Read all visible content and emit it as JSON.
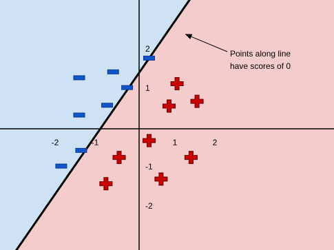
{
  "colors": {
    "negative_region": "#cfe2f3",
    "positive_region": "#f4cccc",
    "axis": "#000000",
    "boundary": "#000000",
    "minus_fill": "#1155cc",
    "minus_stroke": "#0b3a8c",
    "plus_fill": "#cc0000",
    "plus_stroke": "#660000"
  },
  "axes": {
    "x_ticks": [
      {
        "value": -2,
        "label": "-2"
      },
      {
        "value": -1,
        "label": "-1"
      },
      {
        "value": 1,
        "label": "1"
      },
      {
        "value": 2,
        "label": "2"
      }
    ],
    "y_ticks": [
      {
        "value": 2,
        "label": "2"
      },
      {
        "value": 1,
        "label": "1"
      },
      {
        "value": -1,
        "label": "-1"
      },
      {
        "value": -2,
        "label": "-2"
      }
    ]
  },
  "boundary_line": {
    "points": [
      [
        -3.12,
        -3.16
      ],
      [
        1.39,
        3.47
      ]
    ]
  },
  "annotation": {
    "line1": "Points along line",
    "line2": "have scores of 0",
    "arrow_target": [
      1.18,
      2.4
    ]
  },
  "points": {
    "minus": [
      [
        0.25,
        1.8
      ],
      [
        -1.5,
        1.3
      ],
      [
        -0.65,
        1.45
      ],
      [
        -0.3,
        1.05
      ],
      [
        -0.8,
        0.6
      ],
      [
        -1.5,
        0.35
      ],
      [
        -1.45,
        -0.55
      ],
      [
        -1.95,
        -0.95
      ]
    ],
    "plus": [
      [
        0.95,
        1.15
      ],
      [
        1.45,
        0.7
      ],
      [
        0.75,
        0.58
      ],
      [
        0.25,
        -0.3
      ],
      [
        -0.5,
        -0.73
      ],
      [
        1.3,
        -0.73
      ],
      [
        0.55,
        -1.28
      ],
      [
        -0.83,
        -1.4
      ]
    ]
  }
}
